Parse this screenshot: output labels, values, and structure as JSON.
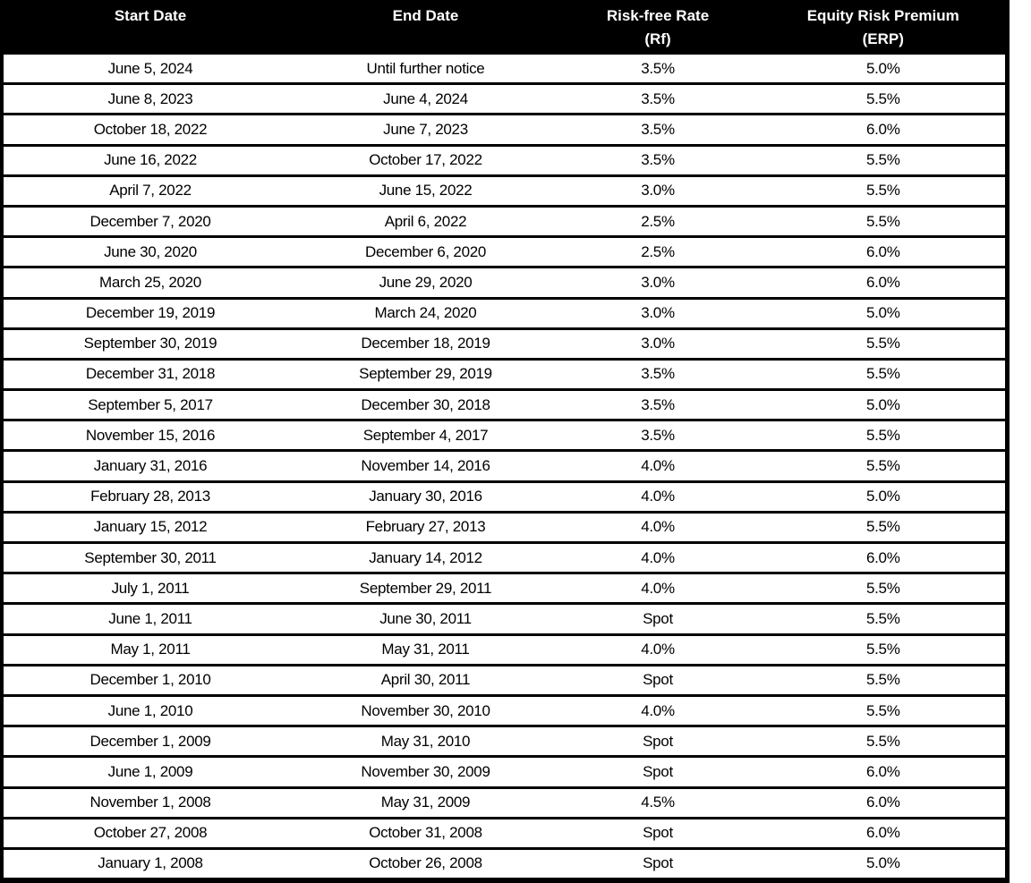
{
  "table": {
    "headers": [
      {
        "line1": "Start Date",
        "line2": ""
      },
      {
        "line1": "End Date",
        "line2": ""
      },
      {
        "line1": "Risk-free Rate",
        "line2": "(Rf)"
      },
      {
        "line1": "Equity Risk Premium",
        "line2": "(ERP)"
      }
    ],
    "rows": [
      {
        "start": "June 5, 2024",
        "end": "Until further notice",
        "rf": "3.5%",
        "erp": "5.0%"
      },
      {
        "start": "June 8, 2023",
        "end": "June 4, 2024",
        "rf": "3.5%",
        "erp": "5.5%"
      },
      {
        "start": "October 18, 2022",
        "end": "June 7, 2023",
        "rf": "3.5%",
        "erp": "6.0%"
      },
      {
        "start": "June 16, 2022",
        "end": "October 17, 2022",
        "rf": "3.5%",
        "erp": "5.5%"
      },
      {
        "start": "April 7, 2022",
        "end": "June 15, 2022",
        "rf": "3.0%",
        "erp": "5.5%"
      },
      {
        "start": "December 7, 2020",
        "end": "April 6, 2022",
        "rf": "2.5%",
        "erp": "5.5%"
      },
      {
        "start": "June 30, 2020",
        "end": "December 6, 2020",
        "rf": "2.5%",
        "erp": "6.0%"
      },
      {
        "start": "March 25, 2020",
        "end": "June 29, 2020",
        "rf": "3.0%",
        "erp": "6.0%"
      },
      {
        "start": "December 19, 2019",
        "end": "March 24, 2020",
        "rf": "3.0%",
        "erp": "5.0%"
      },
      {
        "start": "September 30, 2019",
        "end": "December 18, 2019",
        "rf": "3.0%",
        "erp": "5.5%"
      },
      {
        "start": "December 31, 2018",
        "end": "September 29, 2019",
        "rf": "3.5%",
        "erp": "5.5%"
      },
      {
        "start": "September 5, 2017",
        "end": "December 30, 2018",
        "rf": "3.5%",
        "erp": "5.0%"
      },
      {
        "start": "November 15, 2016",
        "end": "September 4, 2017",
        "rf": "3.5%",
        "erp": "5.5%"
      },
      {
        "start": "January 31, 2016",
        "end": "November 14, 2016",
        "rf": "4.0%",
        "erp": "5.5%"
      },
      {
        "start": "February 28, 2013",
        "end": "January 30, 2016",
        "rf": "4.0%",
        "erp": "5.0%"
      },
      {
        "start": "January 15, 2012",
        "end": "February 27, 2013",
        "rf": "4.0%",
        "erp": "5.5%"
      },
      {
        "start": "September 30, 2011",
        "end": "January 14, 2012",
        "rf": "4.0%",
        "erp": "6.0%"
      },
      {
        "start": "July 1, 2011",
        "end": "September 29, 2011",
        "rf": "4.0%",
        "erp": "5.5%"
      },
      {
        "start": "June 1, 2011",
        "end": "June 30, 2011",
        "rf": "Spot",
        "erp": "5.5%"
      },
      {
        "start": "May 1, 2011",
        "end": "May 31, 2011",
        "rf": "4.0%",
        "erp": "5.5%"
      },
      {
        "start": "December 1, 2010",
        "end": "April 30, 2011",
        "rf": "Spot",
        "erp": "5.5%"
      },
      {
        "start": "June 1, 2010",
        "end": "November 30, 2010",
        "rf": "4.0%",
        "erp": "5.5%"
      },
      {
        "start": "December 1, 2009",
        "end": "May 31, 2010",
        "rf": "Spot",
        "erp": "5.5%"
      },
      {
        "start": "June 1, 2009",
        "end": "November 30, 2009",
        "rf": "Spot",
        "erp": "6.0%"
      },
      {
        "start": "November 1, 2008",
        "end": "May 31, 2009",
        "rf": "4.5%",
        "erp": "6.0%"
      },
      {
        "start": "October 27, 2008",
        "end": "October 31, 2008",
        "rf": "Spot",
        "erp": "6.0%"
      },
      {
        "start": "January 1, 2008",
        "end": "October 26, 2008",
        "rf": "Spot",
        "erp": "5.0%"
      }
    ]
  },
  "colors": {
    "header_bg": "#000000",
    "header_text": "#ffffff",
    "row_bg": "#ffffff",
    "row_text": "#000000",
    "border": "#000000"
  }
}
